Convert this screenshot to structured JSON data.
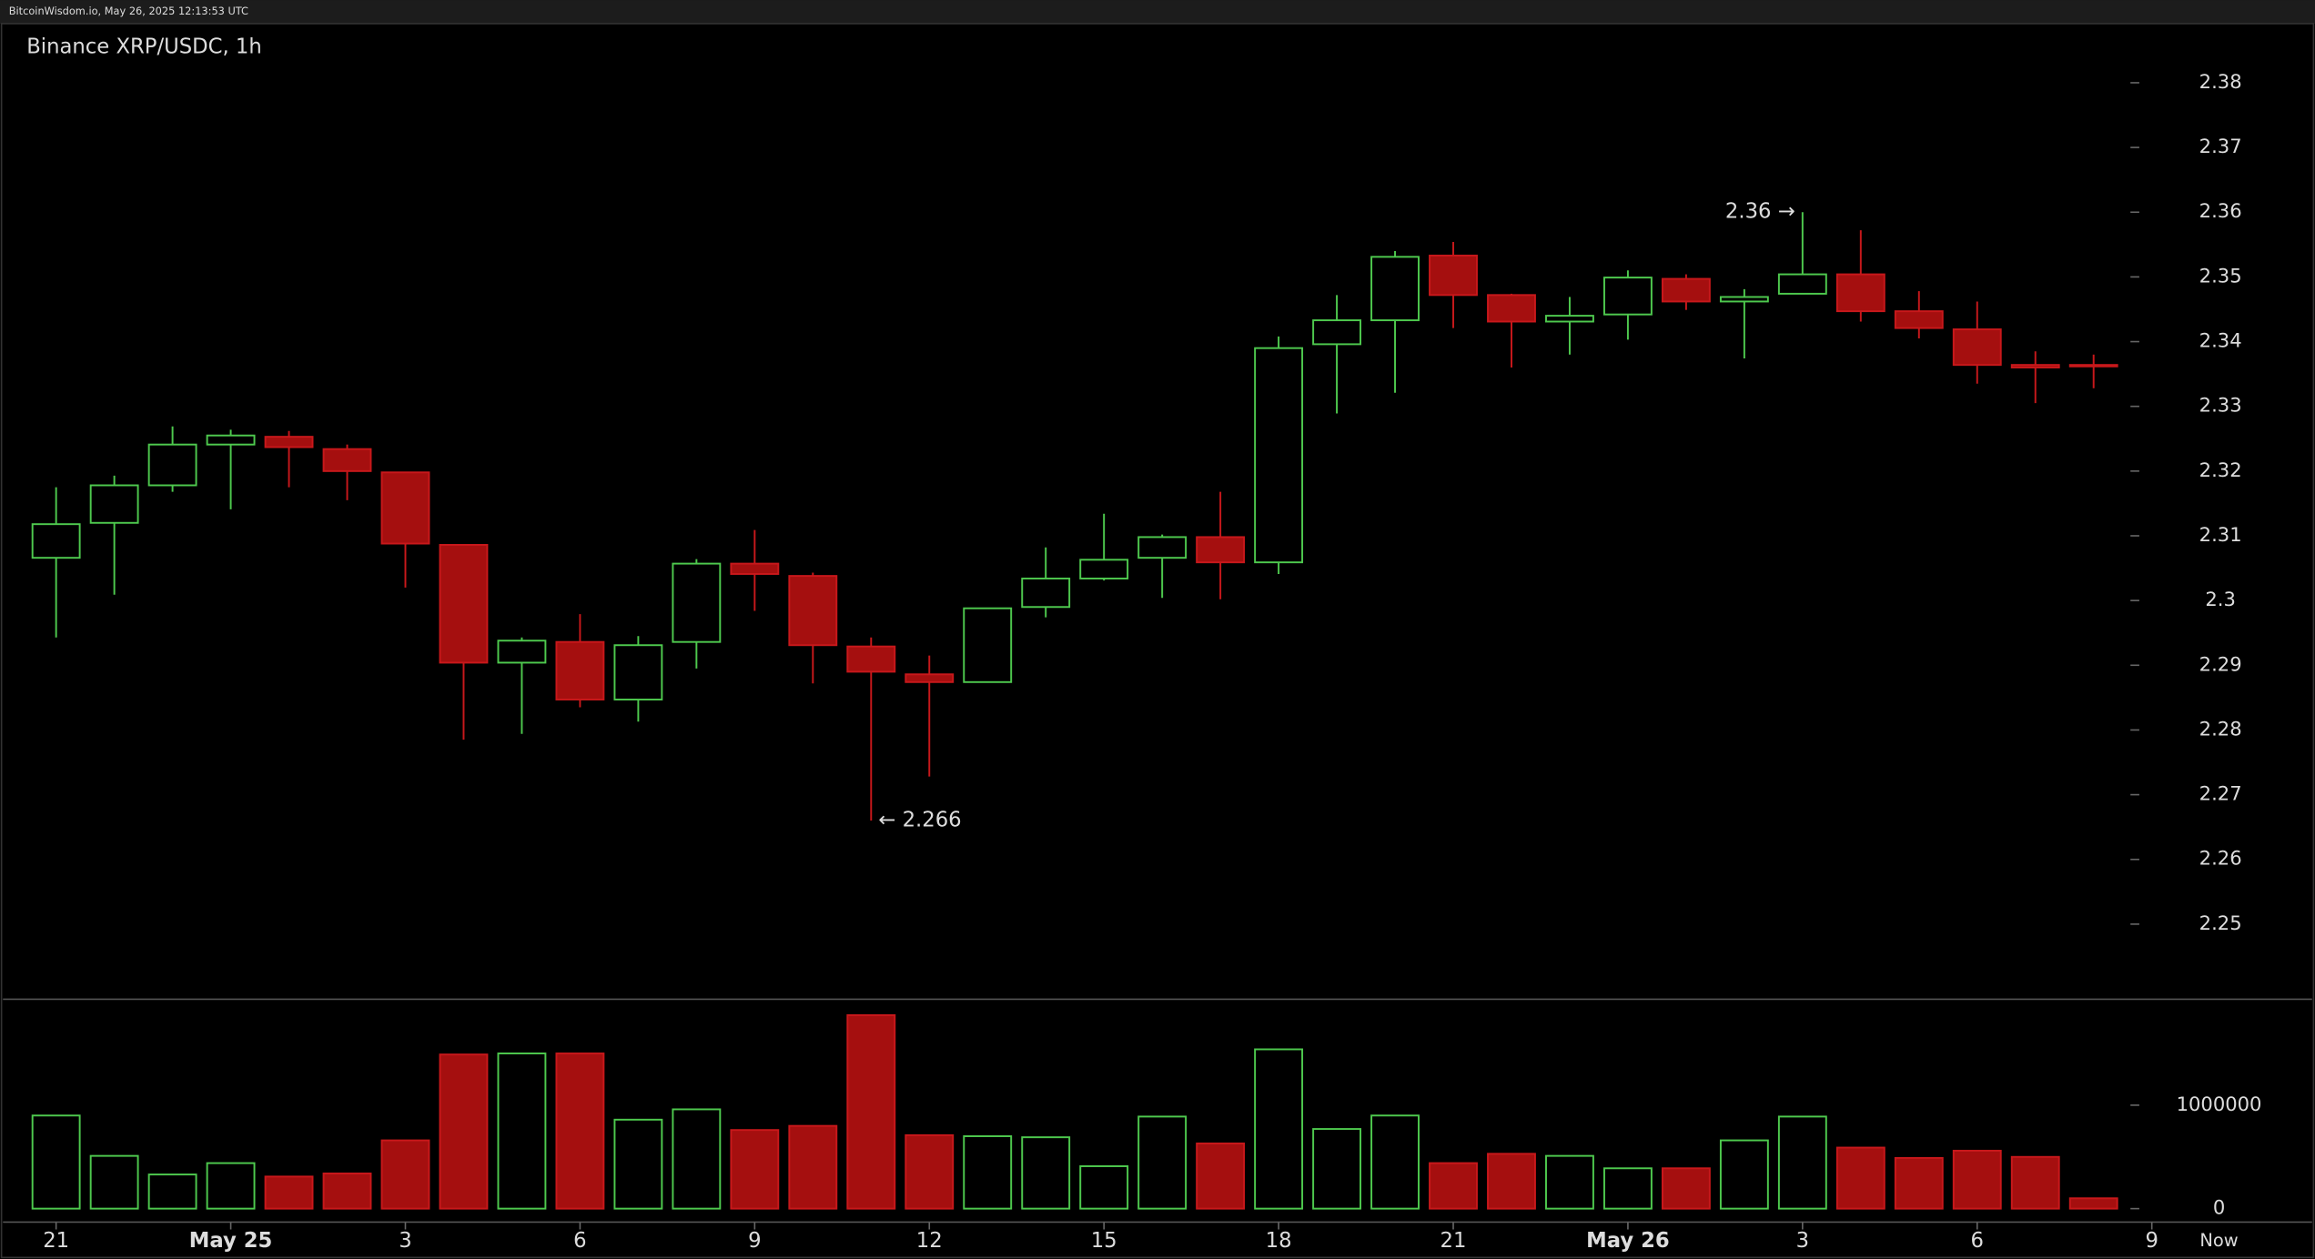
{
  "header": {
    "source": "BitcoinWisdom.io, May 26, 2025 12:13:53 UTC"
  },
  "chart_data": {
    "type": "candlestick",
    "title": "Binance XRP/USDC, 1h",
    "up_color": "#4ec94e",
    "down_color": "#a50f0f",
    "open": [
      2.3066,
      2.312,
      2.3178,
      2.3241,
      2.3253,
      2.3234,
      2.3198,
      2.3086,
      2.2904,
      2.2936,
      2.2847,
      2.2936,
      2.3057,
      2.3038,
      2.2929,
      2.2886,
      2.2874,
      2.299,
      2.3034,
      2.3066,
      2.3098,
      2.3059,
      2.3396,
      2.3433,
      2.3533,
      2.3472,
      2.3431,
      2.3442,
      2.3497,
      2.3462,
      2.3474,
      2.3504,
      2.3447,
      2.3419,
      2.3364,
      2.3364
    ],
    "high": [
      2.3175,
      2.3193,
      2.3269,
      2.3264,
      2.3262,
      2.3241,
      2.3198,
      2.3086,
      2.2943,
      2.2979,
      2.2945,
      2.3064,
      2.3109,
      2.3043,
      2.2943,
      2.2915,
      2.2988,
      2.3082,
      2.3134,
      2.3102,
      2.3168,
      2.3408,
      2.3472,
      2.354,
      2.3554,
      2.3474,
      2.3469,
      2.351,
      2.3504,
      2.3481,
      2.36,
      2.3572,
      2.3478,
      2.3462,
      2.3385,
      2.338
    ],
    "low": [
      2.2943,
      2.3009,
      2.3168,
      2.3141,
      2.3175,
      2.3155,
      2.302,
      2.2785,
      2.2794,
      2.2835,
      2.2813,
      2.2895,
      2.2984,
      2.2872,
      2.266,
      2.2728,
      2.2874,
      2.2974,
      2.3031,
      2.3004,
      2.3002,
      2.3041,
      2.3289,
      2.3321,
      2.3421,
      2.336,
      2.338,
      2.3403,
      2.3449,
      2.3374,
      2.3474,
      2.3431,
      2.3405,
      2.3335,
      2.3305,
      2.3328
    ],
    "close": [
      2.3118,
      2.3178,
      2.3241,
      2.3255,
      2.3237,
      2.32,
      2.3088,
      2.2904,
      2.2938,
      2.2847,
      2.2931,
      2.3057,
      2.3041,
      2.2931,
      2.289,
      2.2874,
      2.2988,
      2.3034,
      2.3063,
      2.3098,
      2.3059,
      2.339,
      2.3433,
      2.3531,
      2.3472,
      2.3431,
      2.344,
      2.3499,
      2.3462,
      2.3469,
      2.3504,
      2.3447,
      2.3421,
      2.3364,
      2.336,
      2.3362
    ],
    "ylim": [
      2.2384,
      2.3905
    ],
    "yticks": [
      2.38,
      2.37,
      2.36,
      2.35,
      2.34,
      2.33,
      2.32,
      2.31,
      2.3,
      2.29,
      2.28,
      2.27,
      2.26,
      2.25
    ],
    "xticks": [
      {
        "value": 0,
        "label": "21"
      },
      {
        "value": 3,
        "label": "May 25"
      },
      {
        "value": 6,
        "label": "3"
      },
      {
        "value": 9,
        "label": "6"
      },
      {
        "value": 12,
        "label": "9"
      },
      {
        "value": 15,
        "label": "12"
      },
      {
        "value": 18,
        "label": "15"
      },
      {
        "value": 21,
        "label": "18"
      },
      {
        "value": 24,
        "label": "21"
      },
      {
        "value": 27,
        "label": "May 26"
      },
      {
        "value": 30,
        "label": "3"
      },
      {
        "value": 33,
        "label": "6"
      },
      {
        "value": 36,
        "label": "9"
      }
    ],
    "now_label": "Now",
    "annotations": [
      {
        "label": "2.36 →",
        "value": 2.36,
        "index": 30,
        "side": "left"
      },
      {
        "label": "← 2.266",
        "value": 2.266,
        "index": 14,
        "side": "right"
      }
    ],
    "volume": {
      "values": [
        900000,
        510000,
        330000,
        440000,
        310000,
        340000,
        660000,
        1490000,
        1500000,
        1500000,
        860000,
        960000,
        760000,
        800000,
        1870000,
        710000,
        700000,
        690000,
        410000,
        890000,
        630000,
        1540000,
        770000,
        900000,
        440000,
        530000,
        510000,
        390000,
        390000,
        660000,
        890000,
        590000,
        490000,
        560000,
        500000,
        100000
      ],
      "ylim": [
        -130000,
        2010000
      ],
      "yticks": [
        0,
        1000000
      ]
    }
  }
}
